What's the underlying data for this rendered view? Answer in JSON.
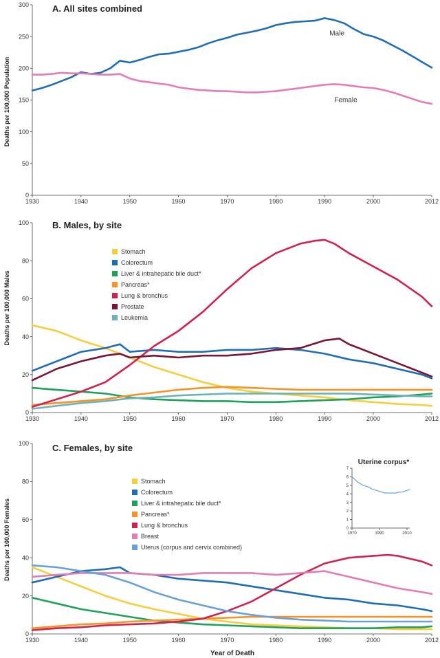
{
  "chart_data": [
    {
      "type": "line",
      "title": "A. All sites combined",
      "ylabel": "Deaths per 100,000 Population",
      "xlim": [
        1930,
        2012
      ],
      "ylim": [
        0,
        300
      ],
      "xticks": [
        "1930",
        "1940",
        "1950",
        "1960",
        "1970",
        "1980",
        "1990",
        "2000",
        "2012"
      ],
      "yticks": [
        "0",
        "50",
        "100",
        "150",
        "200",
        "250",
        "300"
      ],
      "series": [
        {
          "name": "Male",
          "color": "#1f6db5",
          "label": "Male",
          "label_at": [
            1991,
            252
          ],
          "x": [
            1930,
            1932,
            1934,
            1936,
            1938,
            1940,
            1942,
            1944,
            1946,
            1948,
            1950,
            1952,
            1954,
            1956,
            1958,
            1960,
            1962,
            1964,
            1966,
            1968,
            1970,
            1972,
            1974,
            1976,
            1978,
            1980,
            1982,
            1984,
            1986,
            1988,
            1990,
            1992,
            1994,
            1996,
            1998,
            2000,
            2002,
            2004,
            2006,
            2008,
            2010,
            2012
          ],
          "y": [
            165,
            169,
            174,
            180,
            186,
            194,
            191,
            193,
            200,
            212,
            209,
            213,
            218,
            222,
            223,
            226,
            229,
            233,
            239,
            244,
            248,
            253,
            256,
            259,
            263,
            268,
            271,
            273,
            274,
            275,
            279,
            276,
            271,
            262,
            254,
            250,
            244,
            236,
            228,
            219,
            210,
            201
          ]
        },
        {
          "name": "Female",
          "color": "#e47cb5",
          "label": "Female",
          "label_at": [
            1992,
            147
          ],
          "x": [
            1930,
            1932,
            1934,
            1936,
            1938,
            1940,
            1942,
            1944,
            1946,
            1948,
            1950,
            1952,
            1954,
            1956,
            1958,
            1960,
            1962,
            1964,
            1966,
            1968,
            1970,
            1972,
            1974,
            1976,
            1978,
            1980,
            1982,
            1984,
            1986,
            1988,
            1990,
            1992,
            1994,
            1996,
            1998,
            2000,
            2002,
            2004,
            2006,
            2008,
            2010,
            2012
          ],
          "y": [
            190,
            190,
            191,
            193,
            192,
            192,
            191,
            190,
            190,
            191,
            184,
            180,
            178,
            176,
            174,
            170,
            168,
            166,
            165,
            164,
            164,
            163,
            162,
            162,
            163,
            164,
            166,
            168,
            170,
            172,
            174,
            175,
            174,
            172,
            170,
            169,
            166,
            162,
            157,
            152,
            147,
            144
          ]
        }
      ]
    },
    {
      "type": "line",
      "title": "B. Males, by site",
      "ylabel": "Deaths per 100,000 Males",
      "xlim": [
        1930,
        2012
      ],
      "ylim": [
        0,
        100
      ],
      "xticks": [
        "1930",
        "1940",
        "1950",
        "1960",
        "1970",
        "1980",
        "1990",
        "2000",
        "2012"
      ],
      "yticks": [
        "0",
        "20",
        "40",
        "60",
        "80",
        "100"
      ],
      "legend": "upper-left",
      "series": [
        {
          "name": "Stomach",
          "color": "#f6cd3b",
          "x": [
            1930,
            1935,
            1940,
            1945,
            1950,
            1955,
            1960,
            1965,
            1970,
            1975,
            1980,
            1985,
            1990,
            1995,
            2000,
            2005,
            2010,
            2012
          ],
          "y": [
            46,
            43,
            38,
            34,
            29,
            24,
            20,
            16,
            13,
            11,
            10,
            9,
            8,
            6.5,
            5.5,
            4.5,
            4,
            3.5
          ]
        },
        {
          "name": "Colorectum",
          "color": "#1f6db5",
          "x": [
            1930,
            1935,
            1940,
            1945,
            1948,
            1950,
            1955,
            1960,
            1965,
            1970,
            1975,
            1980,
            1985,
            1990,
            1995,
            2000,
            2005,
            2010,
            2012
          ],
          "y": [
            22,
            27,
            32,
            34,
            36,
            32,
            33,
            32,
            32,
            33,
            33,
            34,
            33,
            31,
            28,
            26,
            23,
            20,
            18
          ]
        },
        {
          "name": "Liver & intrahepatic bile duct*",
          "color": "#1fa15a",
          "x": [
            1930,
            1935,
            1940,
            1945,
            1950,
            1955,
            1960,
            1965,
            1970,
            1975,
            1980,
            1985,
            1990,
            1995,
            2000,
            2005,
            2010,
            2012
          ],
          "y": [
            13,
            12,
            11,
            10,
            8,
            7,
            6.5,
            6,
            6,
            5.5,
            5.5,
            6,
            6.5,
            7,
            8,
            8.5,
            9.5,
            10
          ]
        },
        {
          "name": "Pancreas*",
          "color": "#f39328",
          "x": [
            1930,
            1935,
            1940,
            1945,
            1950,
            1955,
            1960,
            1965,
            1970,
            1975,
            1980,
            1985,
            1990,
            1995,
            2000,
            2005,
            2010,
            2012
          ],
          "y": [
            4,
            5,
            6,
            7,
            9,
            10.5,
            12,
            13,
            13.5,
            13,
            12.5,
            12,
            12,
            12,
            12,
            12,
            12,
            12
          ]
        },
        {
          "name": "Lung & bronchus",
          "color": "#d1214f",
          "x": [
            1930,
            1935,
            1940,
            1945,
            1950,
            1955,
            1960,
            1965,
            1970,
            1975,
            1980,
            1985,
            1988,
            1990,
            1992,
            1995,
            2000,
            2005,
            2010,
            2012
          ],
          "y": [
            3,
            7,
            11,
            16,
            25,
            35,
            43,
            53,
            65,
            76,
            84,
            89,
            90.5,
            91,
            89,
            84,
            77,
            70,
            61,
            56
          ]
        },
        {
          "name": "Prostate",
          "color": "#7a1535",
          "x": [
            1930,
            1935,
            1940,
            1945,
            1948,
            1950,
            1955,
            1960,
            1965,
            1970,
            1975,
            1980,
            1985,
            1990,
            1993,
            1995,
            2000,
            2005,
            2010,
            2012
          ],
          "y": [
            17,
            23,
            27,
            30,
            31,
            29,
            30,
            29,
            30,
            30,
            31,
            33,
            34,
            38,
            39,
            36,
            31,
            26,
            21,
            19
          ]
        },
        {
          "name": "Leukemia",
          "color": "#6fb1b8",
          "x": [
            1930,
            1935,
            1940,
            1945,
            1950,
            1955,
            1960,
            1965,
            1970,
            1975,
            1980,
            1985,
            1990,
            1995,
            2000,
            2005,
            2010,
            2012
          ],
          "y": [
            2,
            3.5,
            5,
            6,
            7.5,
            8,
            9,
            9.5,
            10,
            10,
            10,
            10,
            10,
            10,
            9.5,
            9,
            8.5,
            8.5
          ]
        }
      ]
    },
    {
      "type": "line",
      "title": "C. Females, by site",
      "ylabel": "Deaths per 100,000 Females",
      "xlabel": "Year of Death",
      "xlim": [
        1930,
        2012
      ],
      "ylim": [
        0,
        100
      ],
      "xticks": [
        "1930",
        "1940",
        "1950",
        "1960",
        "1970",
        "1980",
        "1990",
        "2000",
        "2012"
      ],
      "yticks": [
        "0",
        "20",
        "40",
        "60",
        "80",
        "100"
      ],
      "legend": "upper-left",
      "series": [
        {
          "name": "Stomach",
          "color": "#f6cd3b",
          "x": [
            1930,
            1935,
            1940,
            1945,
            1950,
            1955,
            1960,
            1965,
            1970,
            1975,
            1980,
            1985,
            1990,
            1995,
            2000,
            2005,
            2010,
            2012
          ],
          "y": [
            35,
            30,
            25,
            20,
            16,
            13,
            10.5,
            8,
            6.5,
            5,
            4.5,
            4,
            3.5,
            3,
            3,
            2.5,
            2.5,
            2.5
          ]
        },
        {
          "name": "Colorectum",
          "color": "#1f6db5",
          "x": [
            1930,
            1935,
            1940,
            1945,
            1948,
            1950,
            1955,
            1960,
            1965,
            1970,
            1975,
            1980,
            1985,
            1990,
            1995,
            2000,
            2005,
            2010,
            2012
          ],
          "y": [
            27,
            30,
            33,
            34,
            35,
            32,
            31,
            29,
            28,
            27,
            25,
            23,
            21,
            19,
            18,
            16,
            15,
            13,
            12
          ]
        },
        {
          "name": "Liver & intrahepatic bile duct*",
          "color": "#1fa15a",
          "x": [
            1930,
            1935,
            1940,
            1945,
            1950,
            1955,
            1960,
            1965,
            1970,
            1975,
            1980,
            1985,
            1990,
            1995,
            2000,
            2005,
            2010,
            2012
          ],
          "y": [
            19,
            16,
            13,
            11,
            9,
            7,
            6,
            5,
            4.5,
            4,
            3.5,
            3,
            3,
            3,
            3,
            3.5,
            3.5,
            4
          ]
        },
        {
          "name": "Pancreas*",
          "color": "#f39328",
          "x": [
            1930,
            1935,
            1940,
            1945,
            1950,
            1955,
            1960,
            1965,
            1970,
            1975,
            1980,
            1985,
            1990,
            1995,
            2000,
            2005,
            2010,
            2012
          ],
          "y": [
            3,
            4,
            5,
            5.5,
            6.5,
            7,
            7.5,
            8,
            8.5,
            9,
            9,
            9,
            9,
            9,
            9,
            9,
            9,
            9
          ]
        },
        {
          "name": "Lung & bronchus",
          "color": "#d1214f",
          "x": [
            1930,
            1935,
            1940,
            1945,
            1950,
            1955,
            1960,
            1965,
            1970,
            1975,
            1980,
            1985,
            1990,
            1995,
            2000,
            2003,
            2005,
            2010,
            2012
          ],
          "y": [
            2,
            3,
            3.5,
            4.5,
            5,
            5.5,
            6.5,
            8,
            12,
            17,
            24,
            31,
            37,
            40,
            41,
            41.5,
            41,
            38,
            36
          ]
        },
        {
          "name": "Breast",
          "color": "#e47cb5",
          "x": [
            1930,
            1935,
            1940,
            1945,
            1950,
            1955,
            1960,
            1965,
            1970,
            1975,
            1980,
            1985,
            1990,
            1995,
            2000,
            2005,
            2010,
            2012
          ],
          "y": [
            30,
            31,
            32,
            32,
            32,
            31,
            31,
            32,
            32,
            32,
            31,
            32,
            33,
            30,
            27,
            24,
            22,
            21
          ]
        },
        {
          "name": "Uterus (corpus and cervix combined)",
          "color": "#6aa0d8",
          "x": [
            1930,
            1935,
            1940,
            1945,
            1950,
            1955,
            1960,
            1965,
            1970,
            1975,
            1980,
            1985,
            1990,
            1995,
            2000,
            2005,
            2010,
            2012
          ],
          "y": [
            36,
            35,
            33,
            31,
            27,
            22,
            18,
            15,
            12,
            10,
            8.5,
            7.5,
            7,
            6.5,
            6.5,
            6.5,
            6.5,
            6.5
          ]
        }
      ]
    },
    {
      "type": "line",
      "title": "Uterine corpus*",
      "xlim": [
        1970,
        2012
      ],
      "ylim": [
        0,
        7
      ],
      "xticks": [
        "1970",
        "1990",
        "2010"
      ],
      "yticks": [
        "0",
        "1",
        "2",
        "3",
        "4",
        "5",
        "6",
        "7"
      ],
      "series": [
        {
          "name": "Uterine corpus*",
          "color": "#6aa0d8",
          "x": [
            1970,
            1972,
            1974,
            1976,
            1978,
            1980,
            1982,
            1984,
            1986,
            1988,
            1990,
            1992,
            1994,
            1996,
            1998,
            2000,
            2002,
            2004,
            2006,
            2008,
            2010,
            2012
          ],
          "y": [
            6.0,
            5.7,
            5.4,
            5.2,
            5.0,
            4.9,
            4.8,
            4.6,
            4.5,
            4.4,
            4.3,
            4.2,
            4.1,
            4.1,
            4.1,
            4.1,
            4.1,
            4.2,
            4.2,
            4.3,
            4.4,
            4.5
          ]
        }
      ]
    }
  ]
}
